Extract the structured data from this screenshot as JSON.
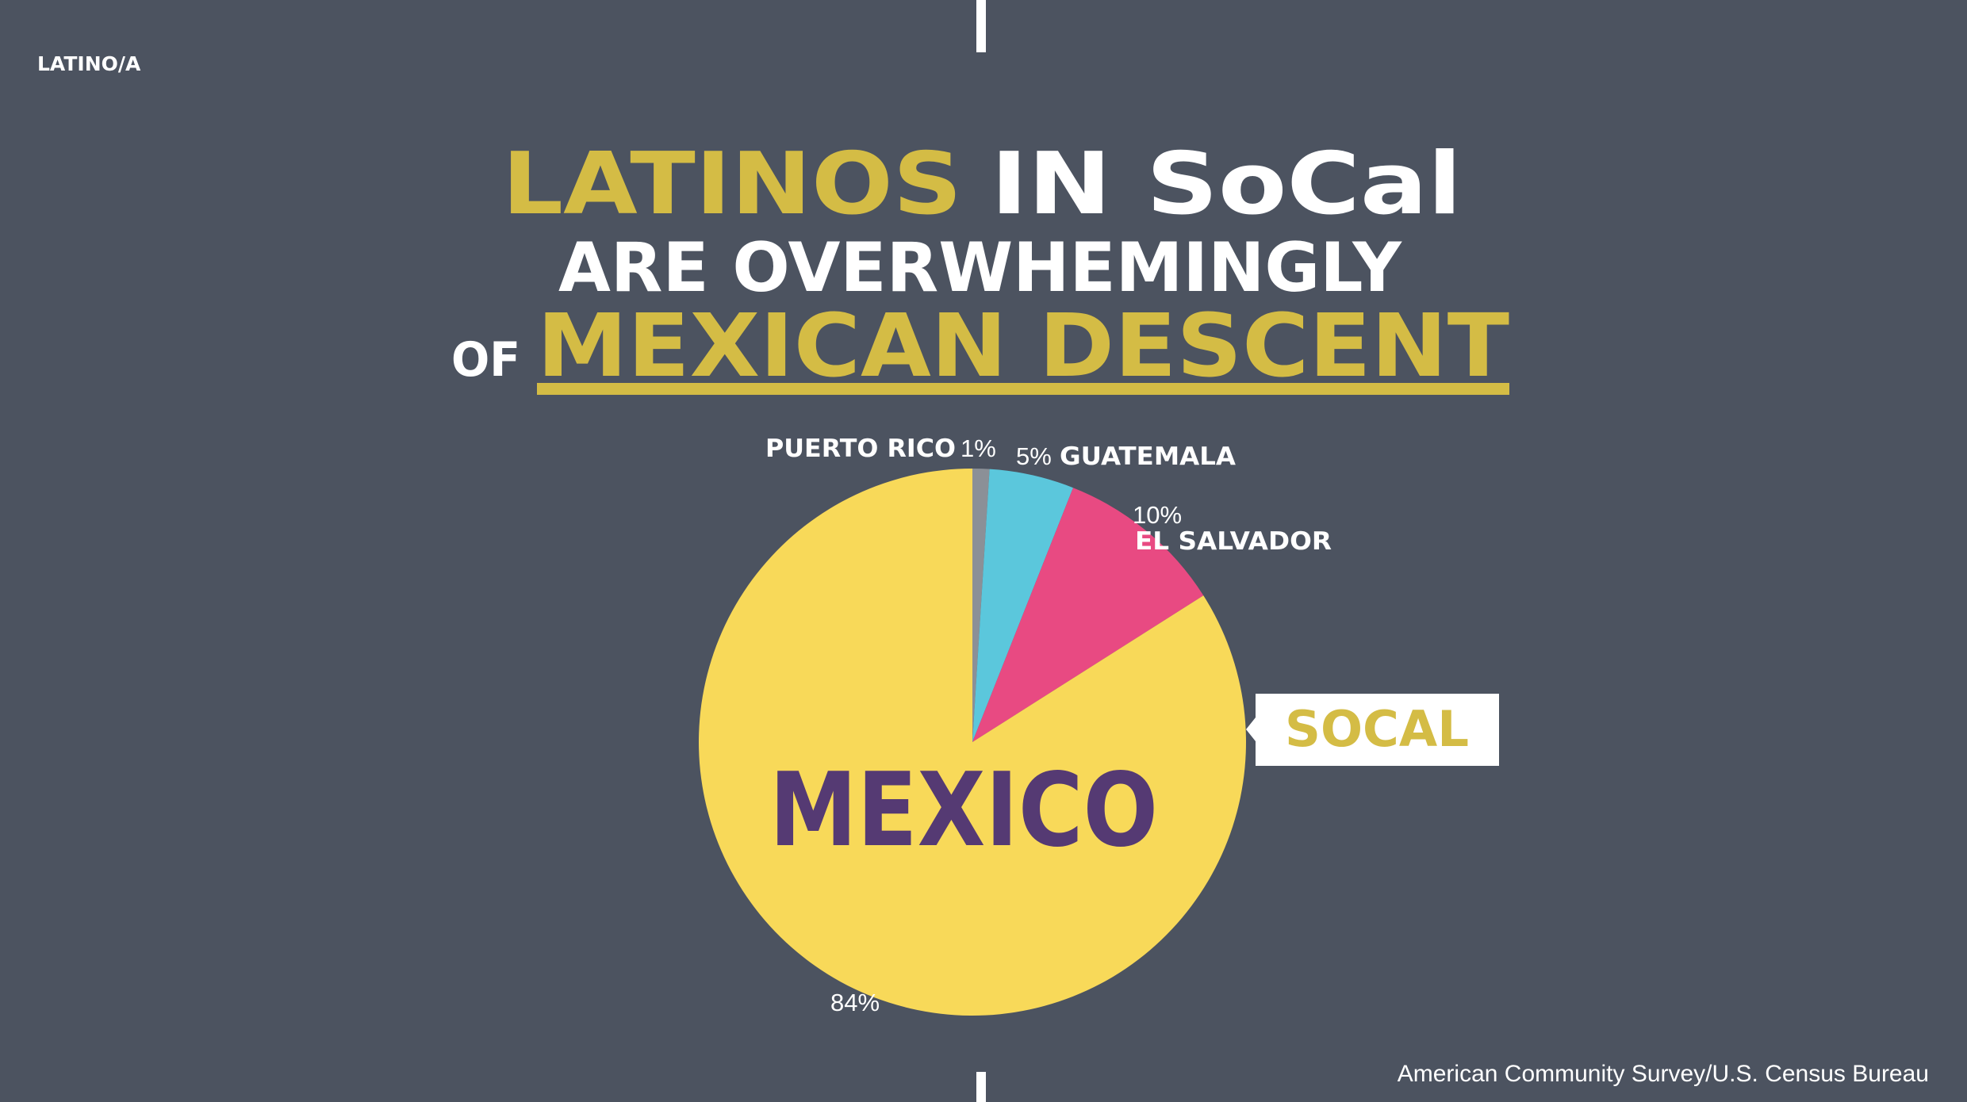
{
  "header": {
    "tag": "LATINO/A",
    "title": {
      "line1a": "LATINOS",
      "line1b": "IN SoCal",
      "line2": "ARE OVERWHEMINGLY",
      "line3a": "OF",
      "line3b": "MEXICAN DESCENT"
    }
  },
  "chart_data": {
    "type": "pie",
    "categories": [
      "PUERTO RICO",
      "GUATEMALA",
      "EL SALVADOR",
      "MEXICO"
    ],
    "values": [
      1,
      5,
      10,
      84
    ],
    "value_labels": [
      "1%",
      "5%",
      "10%",
      "84%"
    ],
    "colors": [
      "#8b9097",
      "#5bc7dc",
      "#e84a82",
      "#f8d959"
    ],
    "callout": "SOCAL"
  },
  "source": "American Community Survey/U.S. Census Bureau"
}
